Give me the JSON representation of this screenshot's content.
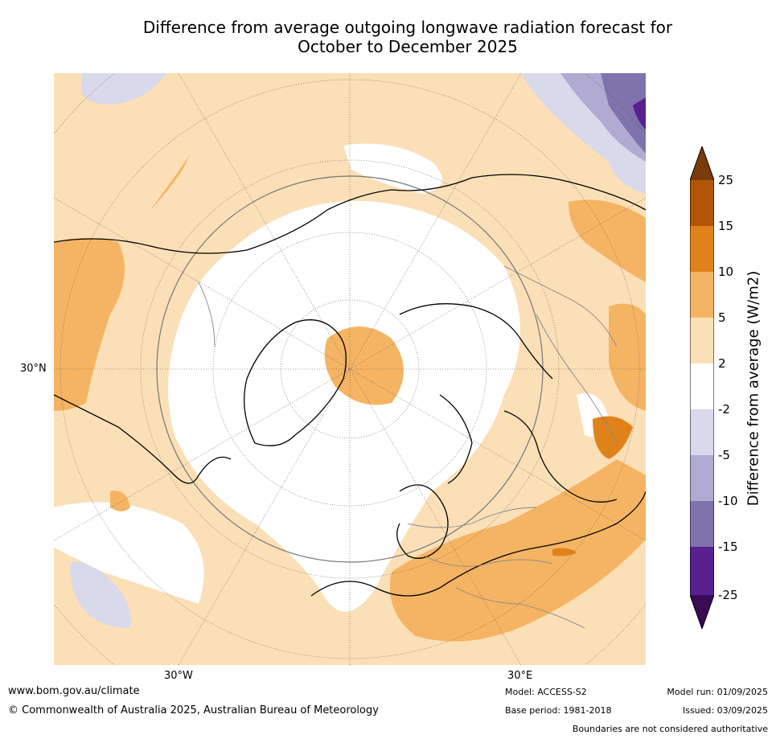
{
  "title_line1": "Difference from average outgoing longwave radiation forecast for",
  "title_line2": "October to December 2025",
  "axis_labels": {
    "lat30n": "30°N",
    "lon30w": "30°W",
    "lon30e": "30°E"
  },
  "colorbar": {
    "title": "Difference from average (W/m2)",
    "ticks": [
      "25",
      "15",
      "10",
      "5",
      "2",
      "-2",
      "-5",
      "-10",
      "-15",
      "-25"
    ],
    "colors": [
      "#7a3b0a",
      "#b05506",
      "#e0821a",
      "#f5b463",
      "#fbdfb6",
      "#ffffff",
      "#d9d9ec",
      "#b1aad2",
      "#7f72ad",
      "#582090",
      "#3a0a55"
    ]
  },
  "footer": {
    "url": "www.bom.gov.au/climate",
    "copyright": "© Commonwealth of Australia 2025, Australian Bureau of Meteorology",
    "model": "Model: ACCESS-S2",
    "model_run": "Model run: 01/09/2025",
    "base_period": "Base period: 1981-2018",
    "issued": "Issued: 03/09/2025",
    "disclaimer": "Boundaries are not considered authoritative"
  }
}
